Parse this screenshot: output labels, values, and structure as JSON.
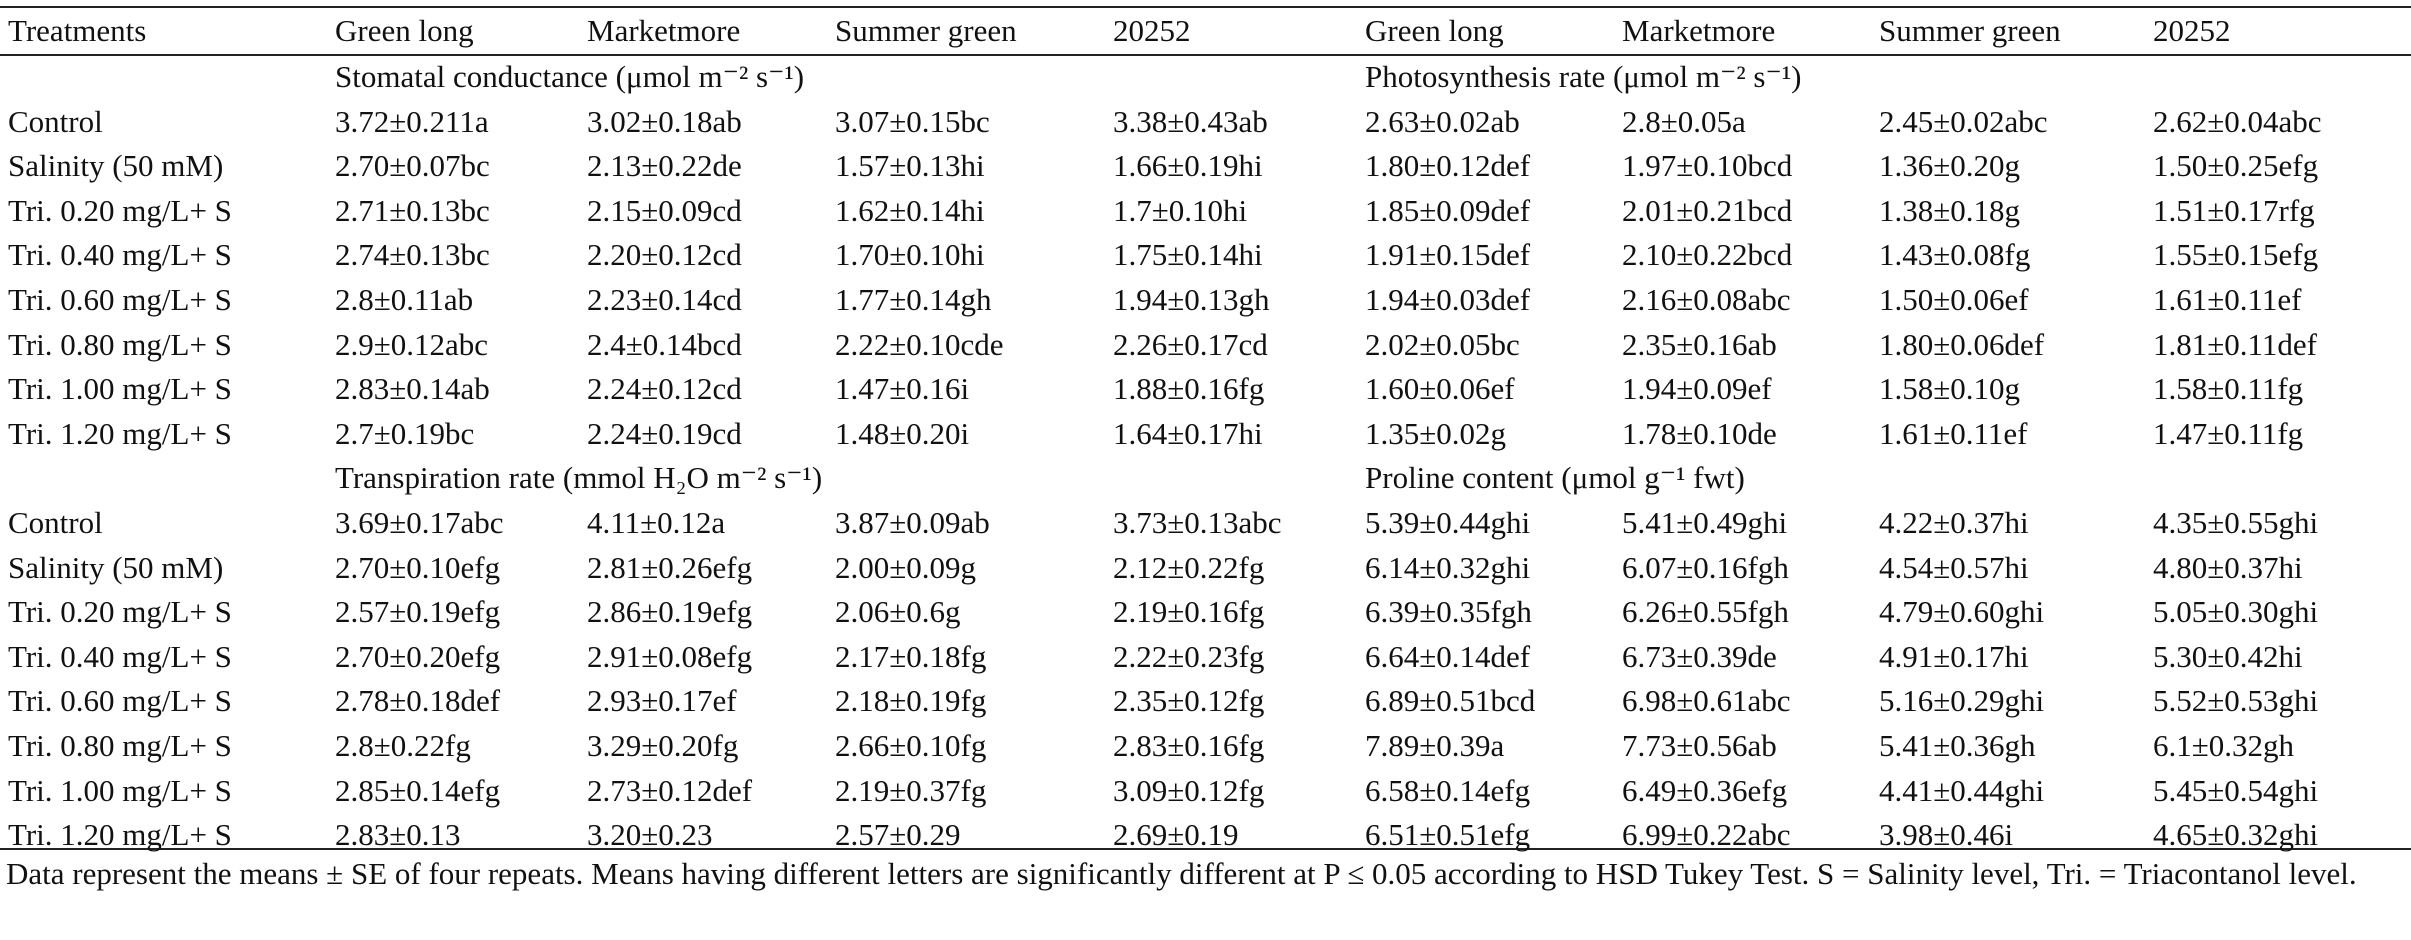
{
  "table": {
    "header": [
      "Treatments",
      "Green long",
      "Marketmore",
      "Summer green",
      "20252",
      "Green long",
      "Marketmore",
      "Summer green",
      "20252"
    ],
    "sections": [
      {
        "titles": [
          "Stomatal conductance (μmol m⁻² s⁻¹)",
          "Photosynthesis rate (μmol m⁻² s⁻¹)"
        ],
        "rows": [
          [
            "Control",
            "3.72±0.211a",
            "3.02±0.18ab",
            "3.07±0.15bc",
            "3.38±0.43ab",
            "2.63±0.02ab",
            "2.8±0.05a",
            "2.45±0.02abc",
            "2.62±0.04abc"
          ],
          [
            "Salinity (50 mM)",
            "2.70±0.07bc",
            "2.13±0.22de",
            "1.57±0.13hi",
            "1.66±0.19hi",
            "1.80±0.12def",
            "1.97±0.10bcd",
            "1.36±0.20g",
            "1.50±0.25efg"
          ],
          [
            "Tri. 0.20 mg/L+ S",
            "2.71±0.13bc",
            "2.15±0.09cd",
            "1.62±0.14hi",
            "1.7±0.10hi",
            "1.85±0.09def",
            "2.01±0.21bcd",
            "1.38±0.18g",
            "1.51±0.17rfg"
          ],
          [
            "Tri. 0.40 mg/L+ S",
            "2.74±0.13bc",
            "2.20±0.12cd",
            "1.70±0.10hi",
            "1.75±0.14hi",
            "1.91±0.15def",
            "2.10±0.22bcd",
            "1.43±0.08fg",
            "1.55±0.15efg"
          ],
          [
            "Tri. 0.60 mg/L+ S",
            "2.8±0.11ab",
            "2.23±0.14cd",
            "1.77±0.14gh",
            "1.94±0.13gh",
            "1.94±0.03def",
            "2.16±0.08abc",
            "1.50±0.06ef",
            "1.61±0.11ef"
          ],
          [
            "Tri. 0.80 mg/L+ S",
            "2.9±0.12abc",
            "2.4±0.14bcd",
            "2.22±0.10cde",
            "2.26±0.17cd",
            "2.02±0.05bc",
            "2.35±0.16ab",
            "1.80±0.06def",
            "1.81±0.11def"
          ],
          [
            "Tri. 1.00 mg/L+ S",
            "2.83±0.14ab",
            "2.24±0.12cd",
            "1.47±0.16i",
            "1.88±0.16fg",
            "1.60±0.06ef",
            "1.94±0.09ef",
            "1.58±0.10g",
            "1.58±0.11fg"
          ],
          [
            "Tri. 1.20 mg/L+ S",
            "2.7±0.19bc",
            "2.24±0.19cd",
            "1.48±0.20i",
            "1.64±0.17hi",
            "1.35±0.02g",
            "1.78±0.10de",
            "1.61±0.11ef",
            "1.47±0.11fg"
          ]
        ]
      },
      {
        "titles": [
          "Transpiration rate (mmol H₂O m⁻² s⁻¹)",
          "Proline content (μmol g⁻¹ fwt)"
        ],
        "rows": [
          [
            "Control",
            "3.69±0.17abc",
            "4.11±0.12a",
            "3.87±0.09ab",
            "3.73±0.13abc",
            "5.39±0.44ghi",
            "5.41±0.49ghi",
            "4.22±0.37hi",
            "4.35±0.55ghi"
          ],
          [
            "Salinity (50 mM)",
            "2.70±0.10efg",
            "2.81±0.26efg",
            "2.00±0.09g",
            "2.12±0.22fg",
            "6.14±0.32ghi",
            "6.07±0.16fgh",
            "4.54±0.57hi",
            "4.80±0.37hi"
          ],
          [
            "Tri. 0.20 mg/L+ S",
            "2.57±0.19efg",
            "2.86±0.19efg",
            "2.06±0.6g",
            "2.19±0.16fg",
            "6.39±0.35fgh",
            "6.26±0.55fgh",
            "4.79±0.60ghi",
            "5.05±0.30ghi"
          ],
          [
            "Tri. 0.40 mg/L+ S",
            "2.70±0.20efg",
            "2.91±0.08efg",
            "2.17±0.18fg",
            "2.22±0.23fg",
            "6.64±0.14def",
            "6.73±0.39de",
            "4.91±0.17hi",
            "5.30±0.42hi"
          ],
          [
            "Tri. 0.60 mg/L+ S",
            "2.78±0.18def",
            "2.93±0.17ef",
            "2.18±0.19fg",
            "2.35±0.12fg",
            "6.89±0.51bcd",
            "6.98±0.61abc",
            "5.16±0.29ghi",
            "5.52±0.53ghi"
          ],
          [
            "Tri. 0.80 mg/L+ S",
            "2.8±0.22fg",
            "3.29±0.20fg",
            "2.66±0.10fg",
            "2.83±0.16fg",
            "7.89±0.39a",
            "7.73±0.56ab",
            "5.41±0.36gh",
            "6.1±0.32gh"
          ],
          [
            "Tri. 1.00 mg/L+ S",
            "2.85±0.14efg",
            "2.73±0.12def",
            "2.19±0.37fg",
            "3.09±0.12fg",
            "6.58±0.14efg",
            "6.49±0.36efg",
            "4.41±0.44ghi",
            "5.45±0.54ghi"
          ],
          [
            "Tri. 1.20 mg/L+ S",
            "2.83±0.13",
            "3.20±0.23",
            "2.57±0.29",
            "2.69±0.19",
            "6.51±0.51efg",
            "6.99±0.22abc",
            "3.98±0.46i",
            "4.65±0.32ghi"
          ]
        ]
      }
    ]
  },
  "footnote": "Data represent the means ± SE of four repeats. Means having different letters are significantly different at P ≤ 0.05 according to HSD Tukey Test. S = Salinity level, Tri. = Triacontanol level."
}
